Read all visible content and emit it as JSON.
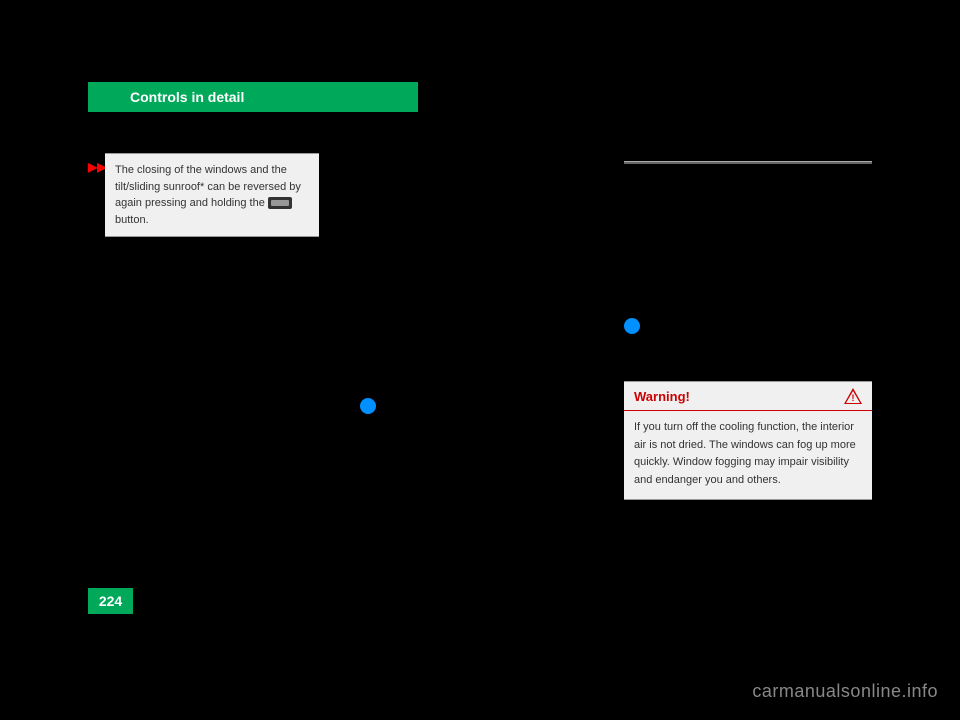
{
  "header": {
    "title": "Controls in detail"
  },
  "page_number": "224",
  "note_box": {
    "line1": "The closing of the windows and the",
    "line2": "tilt/sliding sunroof* can be reversed by",
    "line3_before": "again pressing and holding the ",
    "line3_after": " button."
  },
  "warning_box": {
    "title": "Warning!",
    "body": "If you turn off the cooling function, the interior air is not dried. The windows can fog up more quickly. Window fogging may impair visibility and endanger you and others."
  },
  "watermark": "carmanualsonline.info",
  "colors": {
    "green": "#00a859",
    "red": "#cc0000",
    "blue": "#0090ff",
    "background": "#000000",
    "box_bg": "#f0f0f0"
  }
}
